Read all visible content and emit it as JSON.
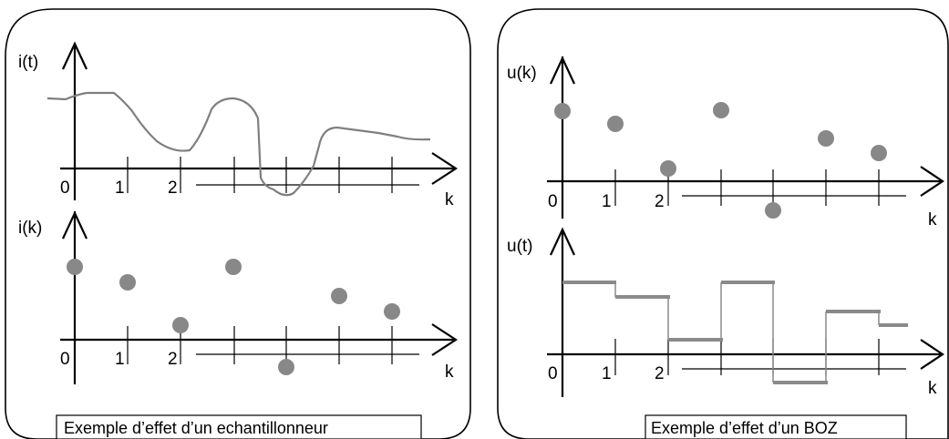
{
  "left_panel": {
    "caption": "Exemple d’effet d’un echantillonneur",
    "top_plot": {
      "y_label": "i(t)",
      "x_label": "k",
      "tick_labels": [
        "0",
        "1",
        "2"
      ]
    },
    "bottom_plot": {
      "y_label": "i(k)",
      "x_label": "k",
      "tick_labels": [
        "0",
        "1",
        "2"
      ]
    }
  },
  "right_panel": {
    "caption": "Exemple d’effet d’un BOZ",
    "top_plot": {
      "y_label": "u(k)",
      "x_label": "k",
      "tick_labels": [
        "0",
        "1",
        "2"
      ]
    },
    "bottom_plot": {
      "y_label": "u(t)",
      "x_label": "k",
      "tick_labels": [
        "0",
        "1",
        "2"
      ]
    }
  },
  "colors": {
    "signal": "#888888",
    "axes": "#000000"
  }
}
